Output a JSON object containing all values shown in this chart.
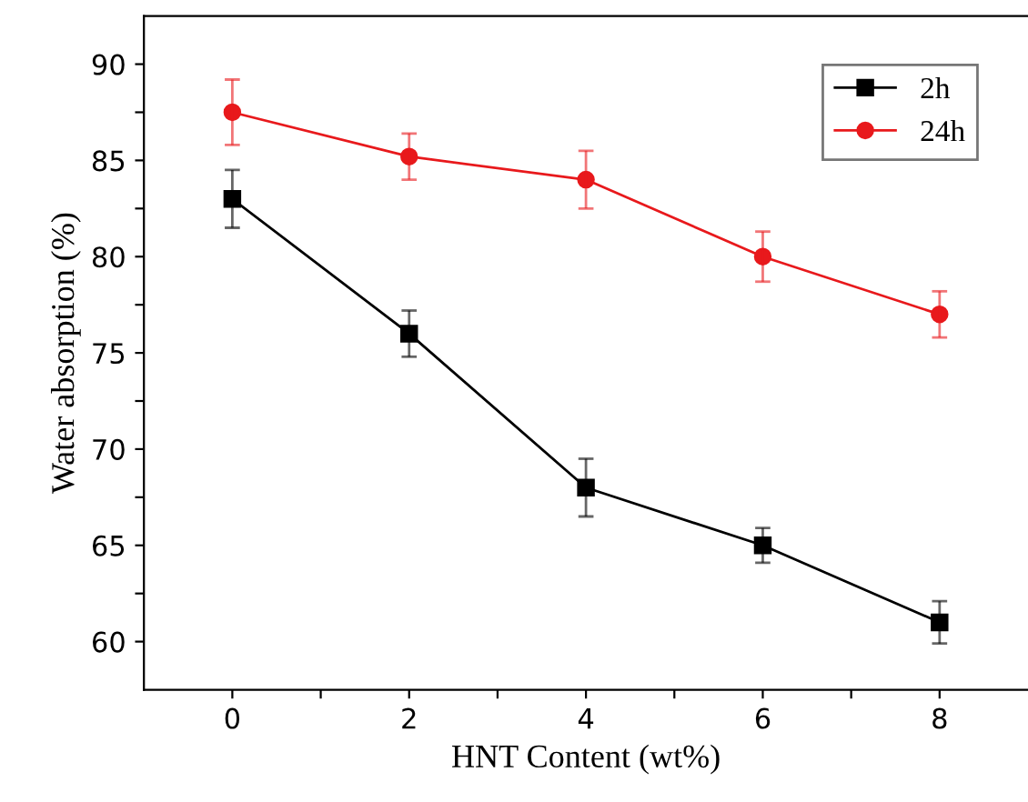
{
  "chart_data": {
    "type": "line",
    "xlabel": "HNT Content (wt%)",
    "ylabel": "Water absorption (%)",
    "x": [
      0,
      2,
      4,
      6,
      8
    ],
    "series": [
      {
        "name": "2h",
        "color": "#000000",
        "marker": "square",
        "values": [
          83,
          76,
          68,
          65,
          61
        ],
        "errors": [
          1.5,
          1.2,
          1.5,
          0.9,
          1.1
        ]
      },
      {
        "name": "24h",
        "color": "#e8191c",
        "marker": "circle",
        "values": [
          87.5,
          85.2,
          84,
          80,
          77
        ],
        "errors": [
          1.7,
          1.2,
          1.5,
          1.3,
          1.2
        ]
      }
    ],
    "xlim": [
      -1,
      9
    ],
    "xticks": [
      0,
      {
        "value": 1,
        "label": null
      },
      2,
      {
        "value": 3,
        "label": null
      },
      4,
      {
        "value": 5,
        "label": null
      },
      6,
      {
        "value": 7,
        "label": null
      },
      8
    ],
    "ylim": [
      57.5,
      92.5
    ],
    "yticks": [
      60,
      {
        "value": 62.5,
        "label": null
      },
      65,
      {
        "value": 67.5,
        "label": null
      },
      70,
      {
        "value": 72.5,
        "label": null
      },
      75,
      {
        "value": 77.5,
        "label": null
      },
      80,
      {
        "value": 82.5,
        "label": null
      },
      85,
      {
        "value": 87.5,
        "label": null
      },
      90
    ],
    "legend": "top right",
    "grid": false,
    "line_style": "solid"
  }
}
